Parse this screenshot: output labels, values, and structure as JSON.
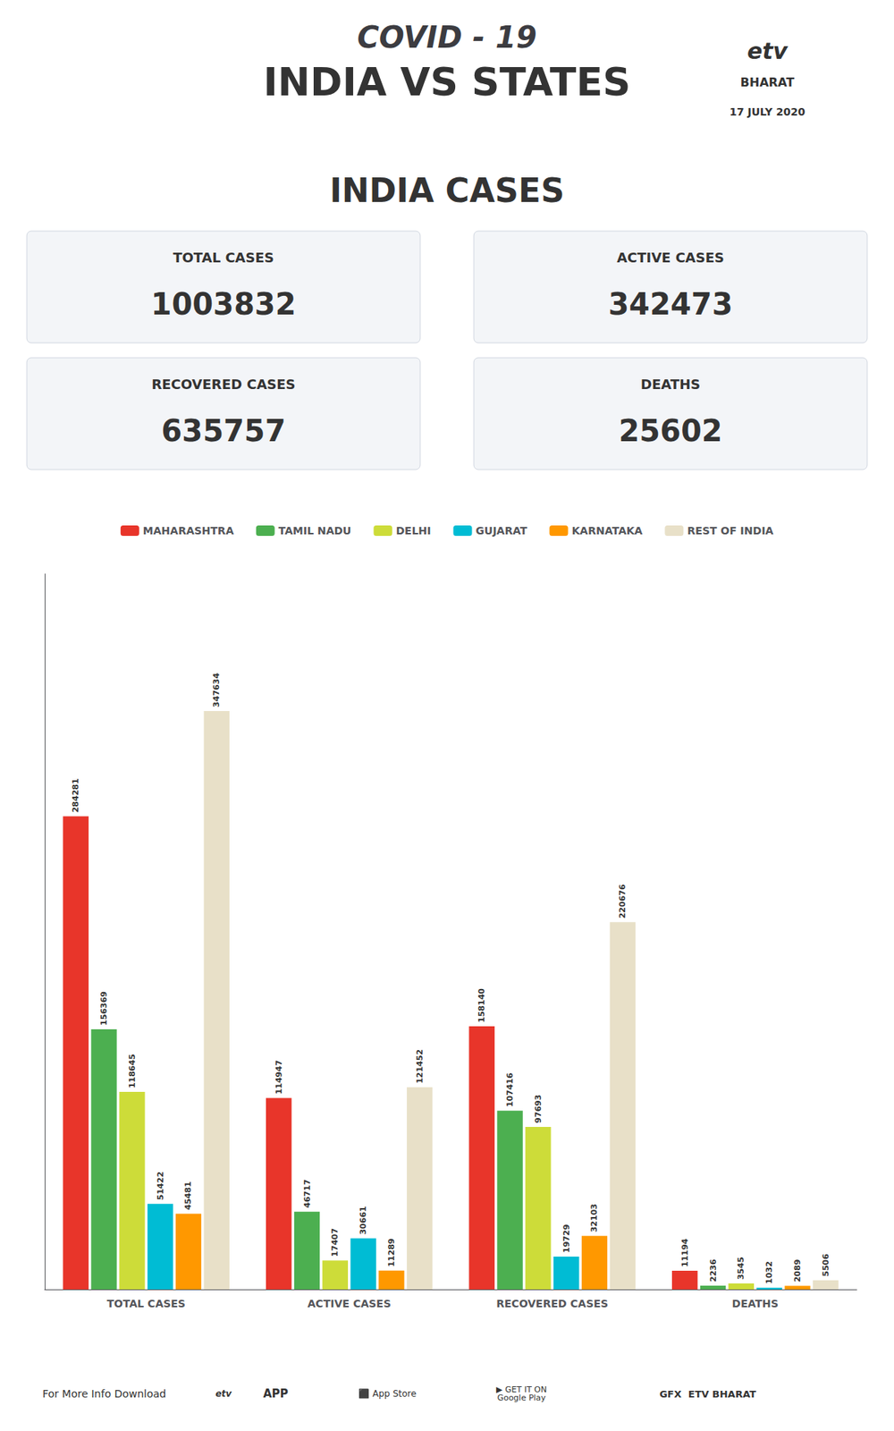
{
  "chart_data": {
    "type": "bar",
    "title": "COVID - 19",
    "subtitle": "INDIA VS STATES",
    "annotations": [
      "17 JULY 2020",
      "etv",
      "BHARAT",
      "INDIA CASES",
      "For More Info Download",
      "etv",
      "APP",
      "⬛ App Store",
      "▶ GET IT ON\nGoogle Play",
      "GFX  ETV BHARAT"
    ],
    "stats": [
      {
        "label": "TOTAL CASES",
        "value": 1003832
      },
      {
        "label": "ACTIVE CASES",
        "value": 342473
      },
      {
        "label": "RECOVERED CASES",
        "value": 635757
      },
      {
        "label": "DEATHS",
        "value": 25602
      }
    ],
    "categories": [
      "TOTAL CASES",
      "ACTIVE CASES",
      "RECOVERED CASES",
      "DEATHS"
    ],
    "series": [
      {
        "name": "MAHARASHTRA",
        "color": "#e8352a",
        "values": [
          284281,
          114947,
          158140,
          11194
        ]
      },
      {
        "name": "TAMIL NADU",
        "color": "#4caf50",
        "values": [
          156369,
          46717,
          107416,
          2236
        ]
      },
      {
        "name": "DELHI",
        "color": "#cddc39",
        "values": [
          118645,
          17407,
          97693,
          3545
        ]
      },
      {
        "name": "GUJARAT",
        "color": "#00bcd4",
        "values": [
          51422,
          30661,
          19729,
          1032
        ]
      },
      {
        "name": "KARNATAKA",
        "color": "#ff9800",
        "values": [
          45481,
          11289,
          32103,
          2089
        ]
      },
      {
        "name": "REST OF INDIA",
        "color": "#e8e0c8",
        "values": [
          347634,
          121452,
          220676,
          5506
        ]
      }
    ],
    "ylim": [
      0,
      430000
    ],
    "grid": false,
    "legend": "top",
    "data_labels": true,
    "tick_labels": "x"
  }
}
